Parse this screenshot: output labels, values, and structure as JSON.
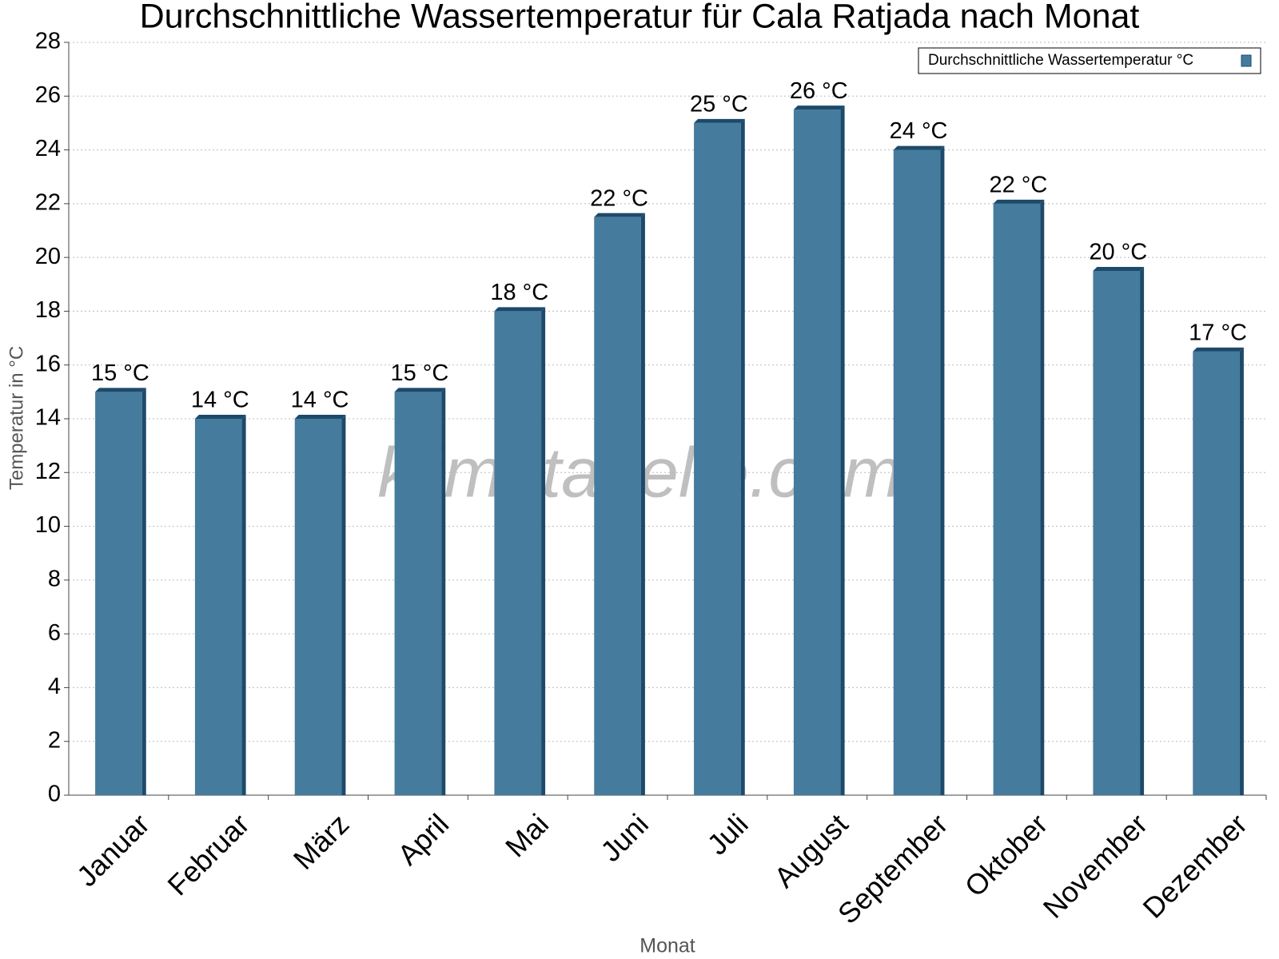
{
  "chart_data": {
    "type": "bar",
    "title": "Durchschnittliche Wassertemperatur für Cala Ratjada nach Monat",
    "x_label": "Monat",
    "y_label": "Temperatur in °C",
    "watermark": "klimatabelle.com",
    "categories": [
      "Januar",
      "Februar",
      "März",
      "April",
      "Mai",
      "Juni",
      "Juli",
      "August",
      "September",
      "Oktober",
      "November",
      "Dezember"
    ],
    "series": [
      {
        "name": "Durchschnittliche Wassertemperatur °C",
        "color": "#457b9d",
        "values": [
          15,
          14,
          14,
          15,
          18,
          21.5,
          25,
          25.5,
          24,
          22,
          19.5,
          16.5
        ],
        "value_labels": [
          "15 °C",
          "14 °C",
          "14 °C",
          "15 °C",
          "18 °C",
          "22 °C",
          "25 °C",
          "26 °C",
          "24 °C",
          "22 °C",
          "20 °C",
          "17 °C"
        ]
      }
    ],
    "ylim": [
      0,
      28
    ],
    "yticks": [
      0,
      2,
      4,
      6,
      8,
      10,
      12,
      14,
      16,
      18,
      20,
      22,
      24,
      26,
      28
    ],
    "grid": true,
    "legend": "top-right"
  }
}
